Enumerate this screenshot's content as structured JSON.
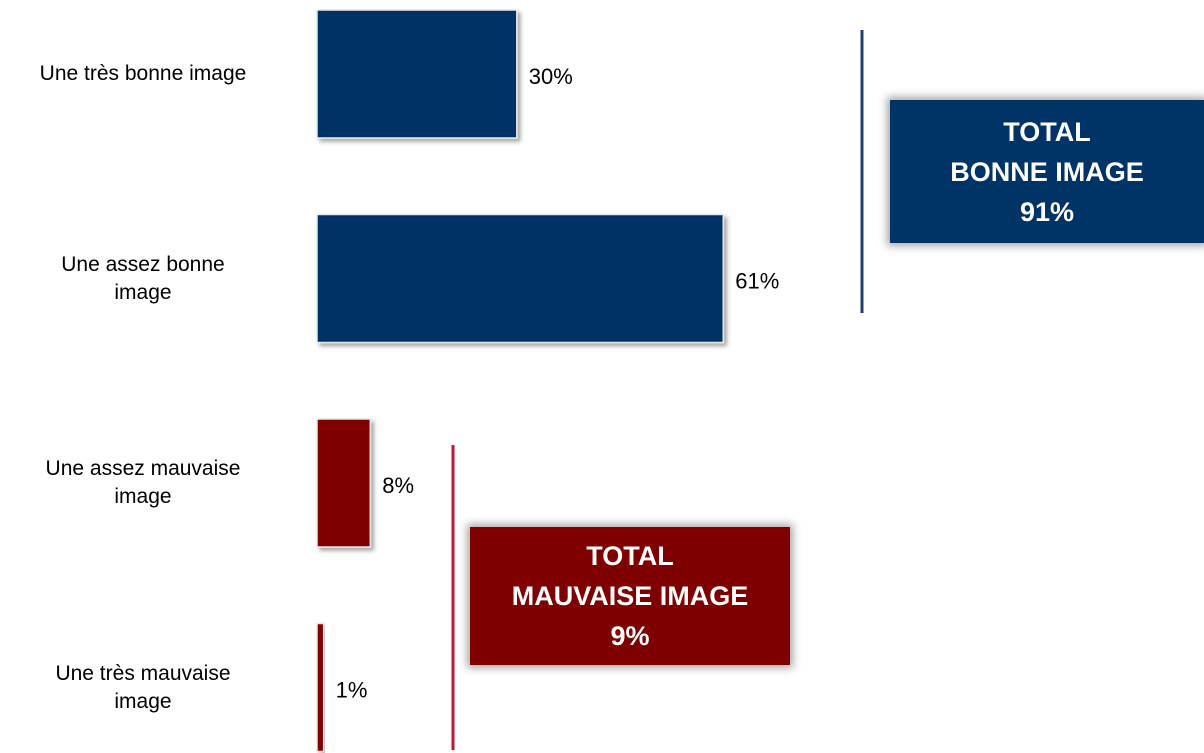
{
  "chart_data": {
    "type": "bar",
    "orientation": "horizontal",
    "categories": [
      "Une très bonne image",
      "Une assez bonne\nimage",
      "Une assez mauvaise\nimage",
      "Une très mauvaise\nimage"
    ],
    "values": [
      30,
      61,
      8,
      1
    ],
    "value_labels": [
      "30%",
      "61%",
      "8%",
      "1%"
    ],
    "colors": [
      "#003366",
      "#003366",
      "#7f0000",
      "#7f0000"
    ],
    "annotations": [
      {
        "lines": [
          "TOTAL",
          "BONNE IMAGE",
          "91%"
        ],
        "color": "#003366"
      },
      {
        "lines": [
          "TOTAL",
          "MAUVAISE IMAGE",
          "9%"
        ],
        "color": "#7f0000"
      }
    ]
  }
}
